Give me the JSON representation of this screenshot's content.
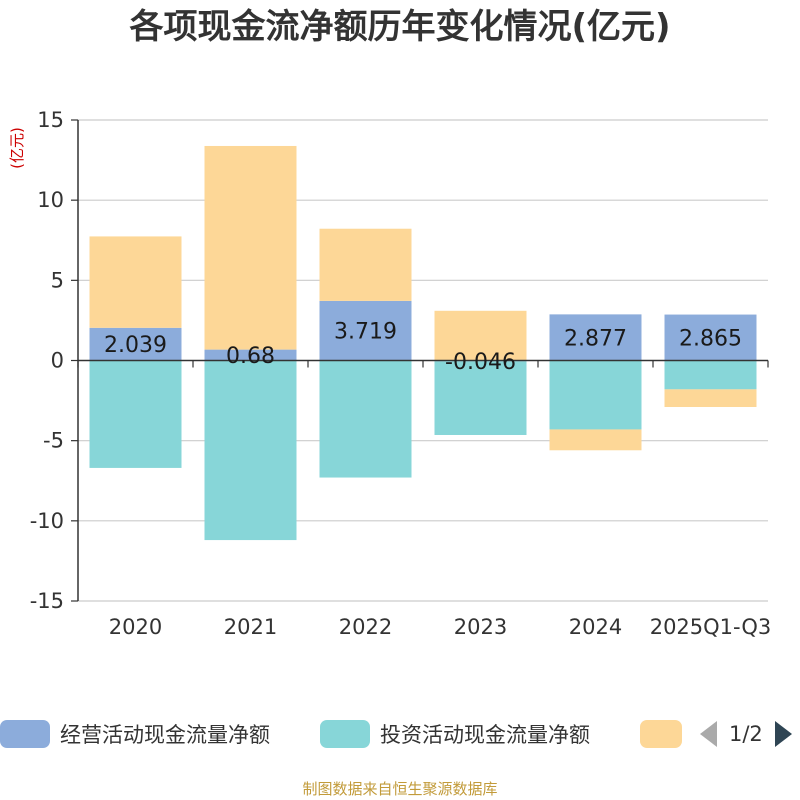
{
  "chart_data": {
    "type": "bar",
    "stacked": true,
    "title": "各项现金流净额历年变化情况(亿元)",
    "ylabel": "(亿元)",
    "xlabel": "",
    "ylim": [
      -15,
      15
    ],
    "yticks": [
      15,
      10,
      5,
      0,
      -5,
      -10,
      -15
    ],
    "categories": [
      "2020",
      "2021",
      "2022",
      "2023",
      "2024",
      "2025Q1-Q3"
    ],
    "series": [
      {
        "name": "经营活动现金流量净额",
        "color": "#8cacdb",
        "values": [
          2.039,
          0.68,
          3.719,
          -0.046,
          2.877,
          2.865
        ],
        "labels": [
          "2.039",
          "0.68",
          "3.719",
          "-0.046",
          "2.877",
          "2.865"
        ]
      },
      {
        "name": "投资活动现金流量净额",
        "color": "#87d6d8",
        "values": [
          -6.7,
          -11.2,
          -7.3,
          -4.6,
          -4.3,
          -1.8
        ]
      },
      {
        "name": "",
        "color": "#fdd797",
        "values": [
          5.7,
          12.7,
          4.5,
          3.1,
          -1.3,
          -1.1
        ]
      }
    ]
  },
  "legend": {
    "items": [
      "经营活动现金流量净额",
      "投资活动现金流量净额",
      ""
    ],
    "page": "1/2"
  },
  "source_note": "制图数据来自恒生聚源数据库"
}
